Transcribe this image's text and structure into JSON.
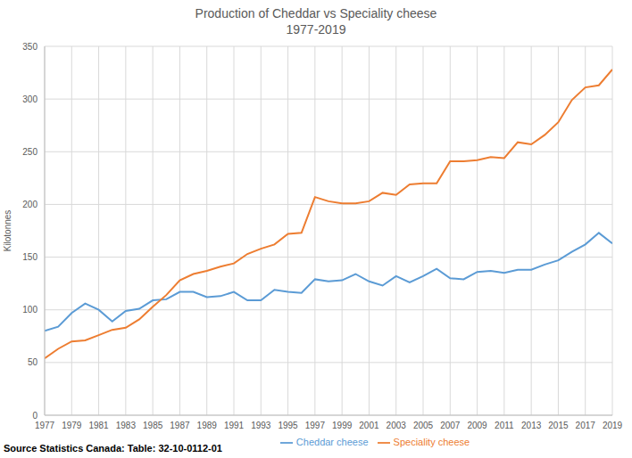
{
  "chart_data": {
    "type": "line",
    "title": "Production of Cheddar vs Speciality cheese",
    "subtitle": "1977-2019",
    "y_label": "Kilotonnes",
    "source": "Source Statistics Canada: Table: 32-10-0112-01",
    "x": [
      1977,
      1978,
      1979,
      1980,
      1981,
      1982,
      1983,
      1984,
      1985,
      1986,
      1987,
      1988,
      1989,
      1990,
      1991,
      1992,
      1993,
      1994,
      1995,
      1996,
      1997,
      1998,
      1999,
      2000,
      2001,
      2002,
      2003,
      2004,
      2005,
      2006,
      2007,
      2008,
      2009,
      2010,
      2011,
      2012,
      2013,
      2014,
      2015,
      2016,
      2017,
      2018,
      2019
    ],
    "series": [
      {
        "name": "Cheddar cheese",
        "color": "#5b9bd5",
        "values": [
          80,
          84,
          97,
          106,
          100,
          89,
          99,
          101,
          109,
          110,
          117,
          117,
          112,
          113,
          117,
          109,
          109,
          119,
          117,
          116,
          129,
          127,
          128,
          134,
          127,
          123,
          132,
          126,
          132,
          139,
          130,
          129,
          136,
          137,
          135,
          138,
          138,
          143,
          147,
          155,
          162,
          173,
          163
        ]
      },
      {
        "name": "Speciality cheese",
        "color": "#ed7d31",
        "values": [
          54,
          63,
          70,
          71,
          76,
          81,
          83,
          91,
          103,
          114,
          128,
          134,
          137,
          141,
          144,
          153,
          158,
          162,
          172,
          173,
          207,
          203,
          201,
          201,
          203,
          211,
          209,
          219,
          220,
          220,
          241,
          241,
          242,
          245,
          244,
          259,
          257,
          266,
          278,
          299,
          311,
          313,
          328
        ]
      }
    ],
    "xlim": [
      1977,
      2019
    ],
    "xticks": [
      1977,
      1979,
      1981,
      1983,
      1985,
      1987,
      1989,
      1991,
      1993,
      1995,
      1997,
      1999,
      2001,
      2003,
      2005,
      2007,
      2009,
      2011,
      2013,
      2015,
      2017,
      2019
    ],
    "ylim": [
      0,
      350
    ],
    "yticks": [
      0,
      50,
      100,
      150,
      200,
      250,
      300,
      350
    ],
    "grid": true,
    "legend": "bottom"
  }
}
